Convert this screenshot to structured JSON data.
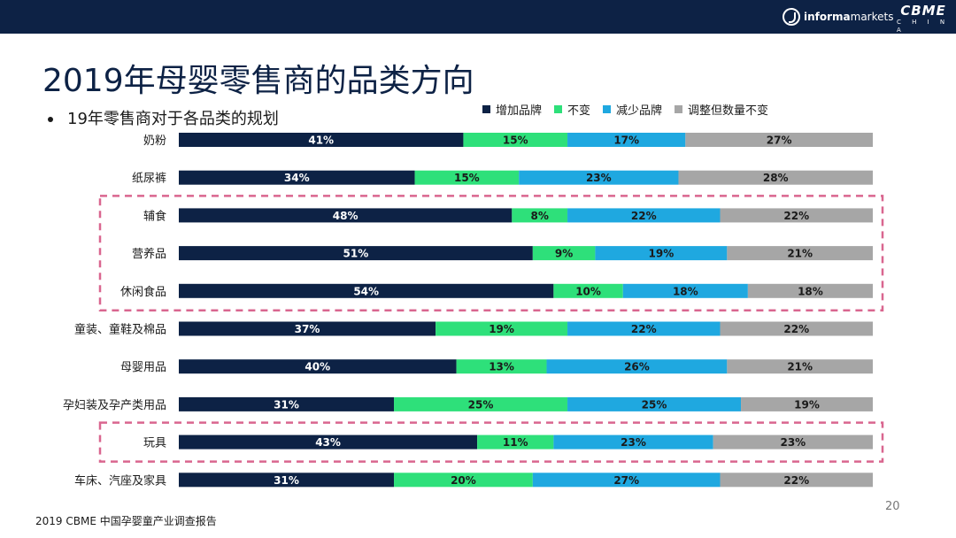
{
  "header": {
    "informa_text": "informa",
    "informa_markets_text": "markets",
    "cbme_text": "CBME",
    "cbme_sub": "C H I N A"
  },
  "slide": {
    "title": "2019年母婴零售商的品类方向",
    "subtitle": "19年零售商对于各品类的规划",
    "footer": "2019 CBME 中国孕婴童产业调查报告",
    "page_number": "20"
  },
  "colors": {
    "increase": "#0d2245",
    "unchanged": "#2ee07a",
    "decrease": "#1fa8e0",
    "adjust": "#a6a6a6",
    "highlight": "#d9668f"
  },
  "chart_data": {
    "type": "bar",
    "orientation": "horizontal",
    "stacked": true,
    "percent": true,
    "xlim": [
      0,
      100
    ],
    "legend_position": "top",
    "categories": [
      "奶粉",
      "纸尿裤",
      "辅食",
      "营养品",
      "休闲食品",
      "童装、童鞋及棉品",
      "母婴用品",
      "孕妇装及孕产类用品",
      "玩具",
      "车床、汽座及家具"
    ],
    "series": [
      {
        "name": "增加品牌",
        "color": "#0d2245",
        "values": [
          41,
          34,
          48,
          51,
          54,
          37,
          40,
          31,
          43,
          31
        ]
      },
      {
        "name": "不变",
        "color": "#2ee07a",
        "values": [
          15,
          15,
          8,
          9,
          10,
          19,
          13,
          25,
          11,
          20
        ]
      },
      {
        "name": "减少品牌",
        "color": "#1fa8e0",
        "values": [
          17,
          23,
          22,
          19,
          18,
          22,
          26,
          25,
          23,
          27
        ]
      },
      {
        "name": "调整但数量不变",
        "color": "#a6a6a6",
        "values": [
          27,
          28,
          22,
          21,
          18,
          22,
          21,
          19,
          23,
          22
        ]
      }
    ],
    "highlight_groups": [
      {
        "start": 2,
        "end": 4
      },
      {
        "start": 8,
        "end": 8
      }
    ]
  }
}
